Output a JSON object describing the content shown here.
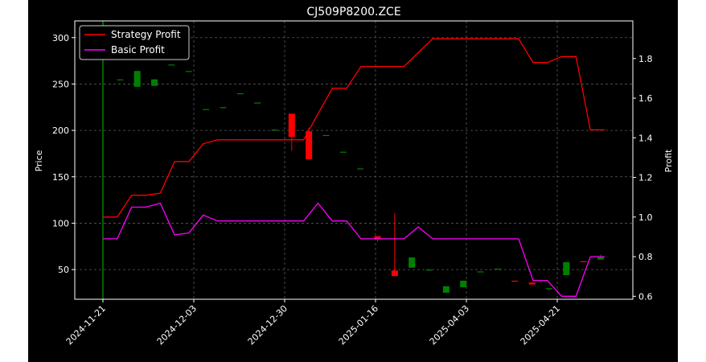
{
  "chart_data": {
    "type": "candlestick",
    "title": "CJ509P8200.ZCE",
    "xlabel": "",
    "ylabel_left": "Price",
    "ylabel_right": "Profit",
    "x_tick_labels": [
      "2024-11-21",
      "2024-12-03",
      "2024-12-30",
      "2025-01-16",
      "2025-04-03",
      "2025-04-21"
    ],
    "ylim_left": [
      18,
      318
    ],
    "ylim_right": [
      0.585,
      1.99
    ],
    "y_ticks_left": [
      50,
      100,
      150,
      200,
      250,
      300
    ],
    "y_ticks_right": [
      0.6,
      0.8,
      1.0,
      1.2,
      1.4,
      1.6,
      1.8
    ],
    "grid": true,
    "legend_position": "top-left",
    "colors": {
      "background": "#000000",
      "text": "#ffffff",
      "up": "#008000",
      "down": "#ff0000",
      "strategy": "#ff0000",
      "basic": "#ff00ff",
      "marker": "#00c000"
    },
    "candles": [
      {
        "o": 318,
        "h": 318,
        "l": 18,
        "c": 318
      },
      {
        "o": 255,
        "h": 255,
        "l": 255,
        "c": 255
      },
      {
        "o": 247,
        "h": 264,
        "l": 247,
        "c": 264
      },
      {
        "o": 248,
        "h": 255,
        "l": 248,
        "c": 255
      },
      {
        "o": 271,
        "h": 271,
        "l": 271,
        "c": 271
      },
      {
        "o": 264,
        "h": 264,
        "l": 264,
        "c": 264
      },
      {
        "o": 223,
        "h": 223,
        "l": 223,
        "c": 223
      },
      {
        "o": 225,
        "h": 225,
        "l": 225,
        "c": 225
      },
      {
        "o": 240,
        "h": 240,
        "l": 240,
        "c": 240
      },
      {
        "o": 230,
        "h": 230,
        "l": 230,
        "c": 230
      },
      {
        "o": 201,
        "h": 201,
        "l": 201,
        "c": 201
      },
      {
        "o": 218,
        "h": 218,
        "l": 178,
        "c": 193
      },
      {
        "o": 199,
        "h": 203,
        "l": 169,
        "c": 169
      },
      {
        "o": 195,
        "h": 195,
        "l": 195,
        "c": 195
      },
      {
        "o": 177,
        "h": 177,
        "l": 177,
        "c": 177
      },
      {
        "o": 159,
        "h": 159,
        "l": 159,
        "c": 159
      },
      {
        "o": 86,
        "h": 86,
        "l": 80,
        "c": 83
      },
      {
        "o": 49,
        "h": 111,
        "l": 43,
        "c": 43
      },
      {
        "o": 52,
        "h": 63,
        "l": 52,
        "c": 63
      },
      {
        "o": 50,
        "h": 50,
        "l": 50,
        "c": 50
      },
      {
        "o": 25,
        "h": 32,
        "l": 25,
        "c": 32
      },
      {
        "o": 31,
        "h": 38,
        "l": 31,
        "c": 38
      },
      {
        "o": 48,
        "h": 48,
        "l": 48,
        "c": 48
      },
      {
        "o": 51,
        "h": 51,
        "l": 51,
        "c": 51
      },
      {
        "o": 38,
        "h": 38,
        "l": 37,
        "c": 37
      },
      {
        "o": 36,
        "h": 36,
        "l": 34,
        "c": 34
      },
      {
        "o": 30,
        "h": 30,
        "l": 30,
        "c": 30
      },
      {
        "o": 44,
        "h": 58,
        "l": 44,
        "c": 58
      },
      {
        "o": 59,
        "h": 59,
        "l": 58,
        "c": 58
      },
      {
        "o": 61,
        "h": 66,
        "l": 61,
        "c": 63
      }
    ],
    "series": [
      {
        "name": "Strategy Profit",
        "values": [
          1.0,
          1.0,
          1.11,
          1.11,
          1.12,
          1.28,
          1.28,
          1.37,
          1.39,
          1.39,
          1.39,
          1.39,
          1.39,
          1.39,
          1.39,
          1.52,
          1.65,
          1.65,
          1.76,
          1.76,
          1.76,
          1.76,
          1.83,
          1.9,
          1.9,
          1.9,
          1.9,
          1.9,
          1.9,
          1.9,
          1.78,
          1.78,
          1.81,
          1.81,
          1.44,
          1.44
        ]
      },
      {
        "name": "Basic Profit",
        "values": [
          0.89,
          0.89,
          1.05,
          1.05,
          1.07,
          0.91,
          0.92,
          1.01,
          0.98,
          0.98,
          0.98,
          0.98,
          0.98,
          0.98,
          0.98,
          1.07,
          0.98,
          0.98,
          0.89,
          0.89,
          0.89,
          0.89,
          0.95,
          0.89,
          0.89,
          0.89,
          0.89,
          0.89,
          0.89,
          0.89,
          0.68,
          0.68,
          0.6,
          0.6,
          0.8,
          0.8
        ]
      }
    ]
  }
}
